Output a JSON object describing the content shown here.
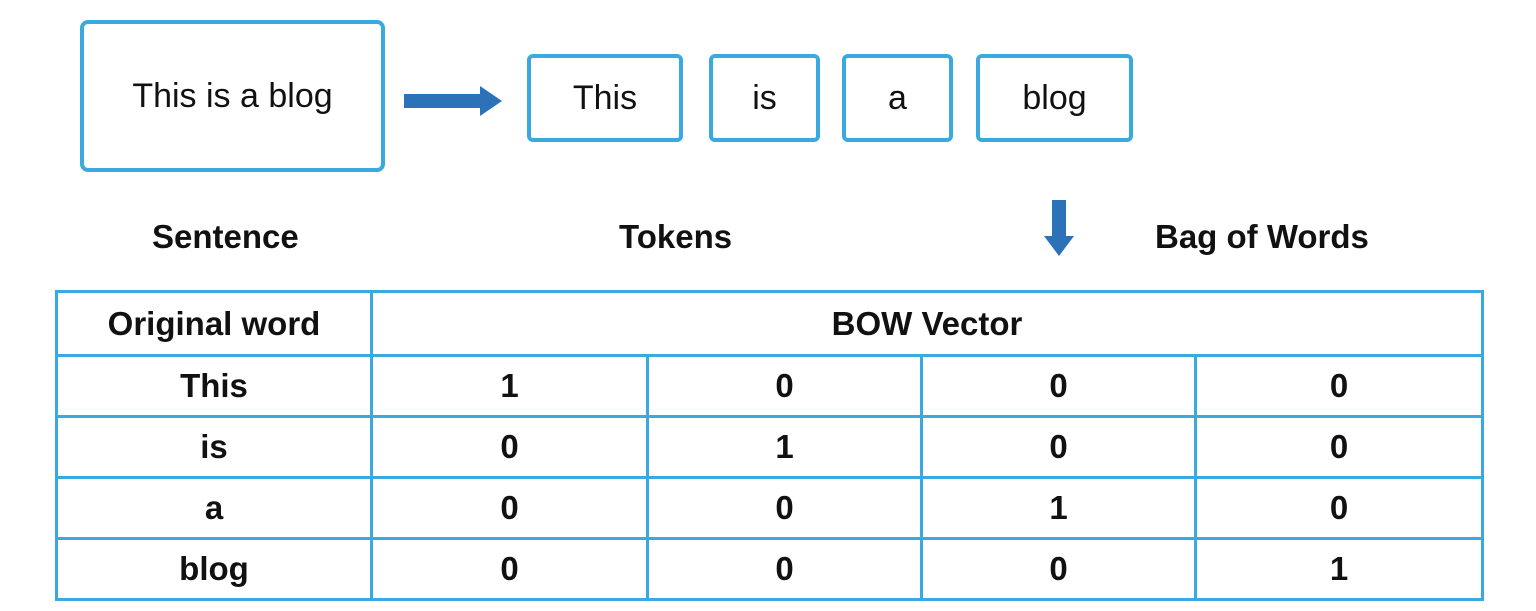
{
  "sentence": {
    "text": "This is a blog",
    "caption": "Sentence"
  },
  "tokens": {
    "items": [
      "This",
      "is",
      "a",
      "blog"
    ],
    "caption": "Tokens"
  },
  "bag_of_words": {
    "caption": "Bag of Words"
  },
  "table": {
    "header_word": "Original word",
    "header_vector": "BOW Vector",
    "rows": [
      {
        "word": "This",
        "vector": [
          "1",
          "0",
          "0",
          "0"
        ]
      },
      {
        "word": "is",
        "vector": [
          "0",
          "1",
          "0",
          "0"
        ]
      },
      {
        "word": "a",
        "vector": [
          "0",
          "0",
          "1",
          "0"
        ]
      },
      {
        "word": "blog",
        "vector": [
          "0",
          "0",
          "0",
          "1"
        ]
      }
    ]
  },
  "colors": {
    "box_border": "#3aa9df",
    "arrow": "#2b72b8"
  },
  "icons": {
    "right_arrow": "arrow-right-icon",
    "down_arrow": "arrow-down-icon"
  }
}
